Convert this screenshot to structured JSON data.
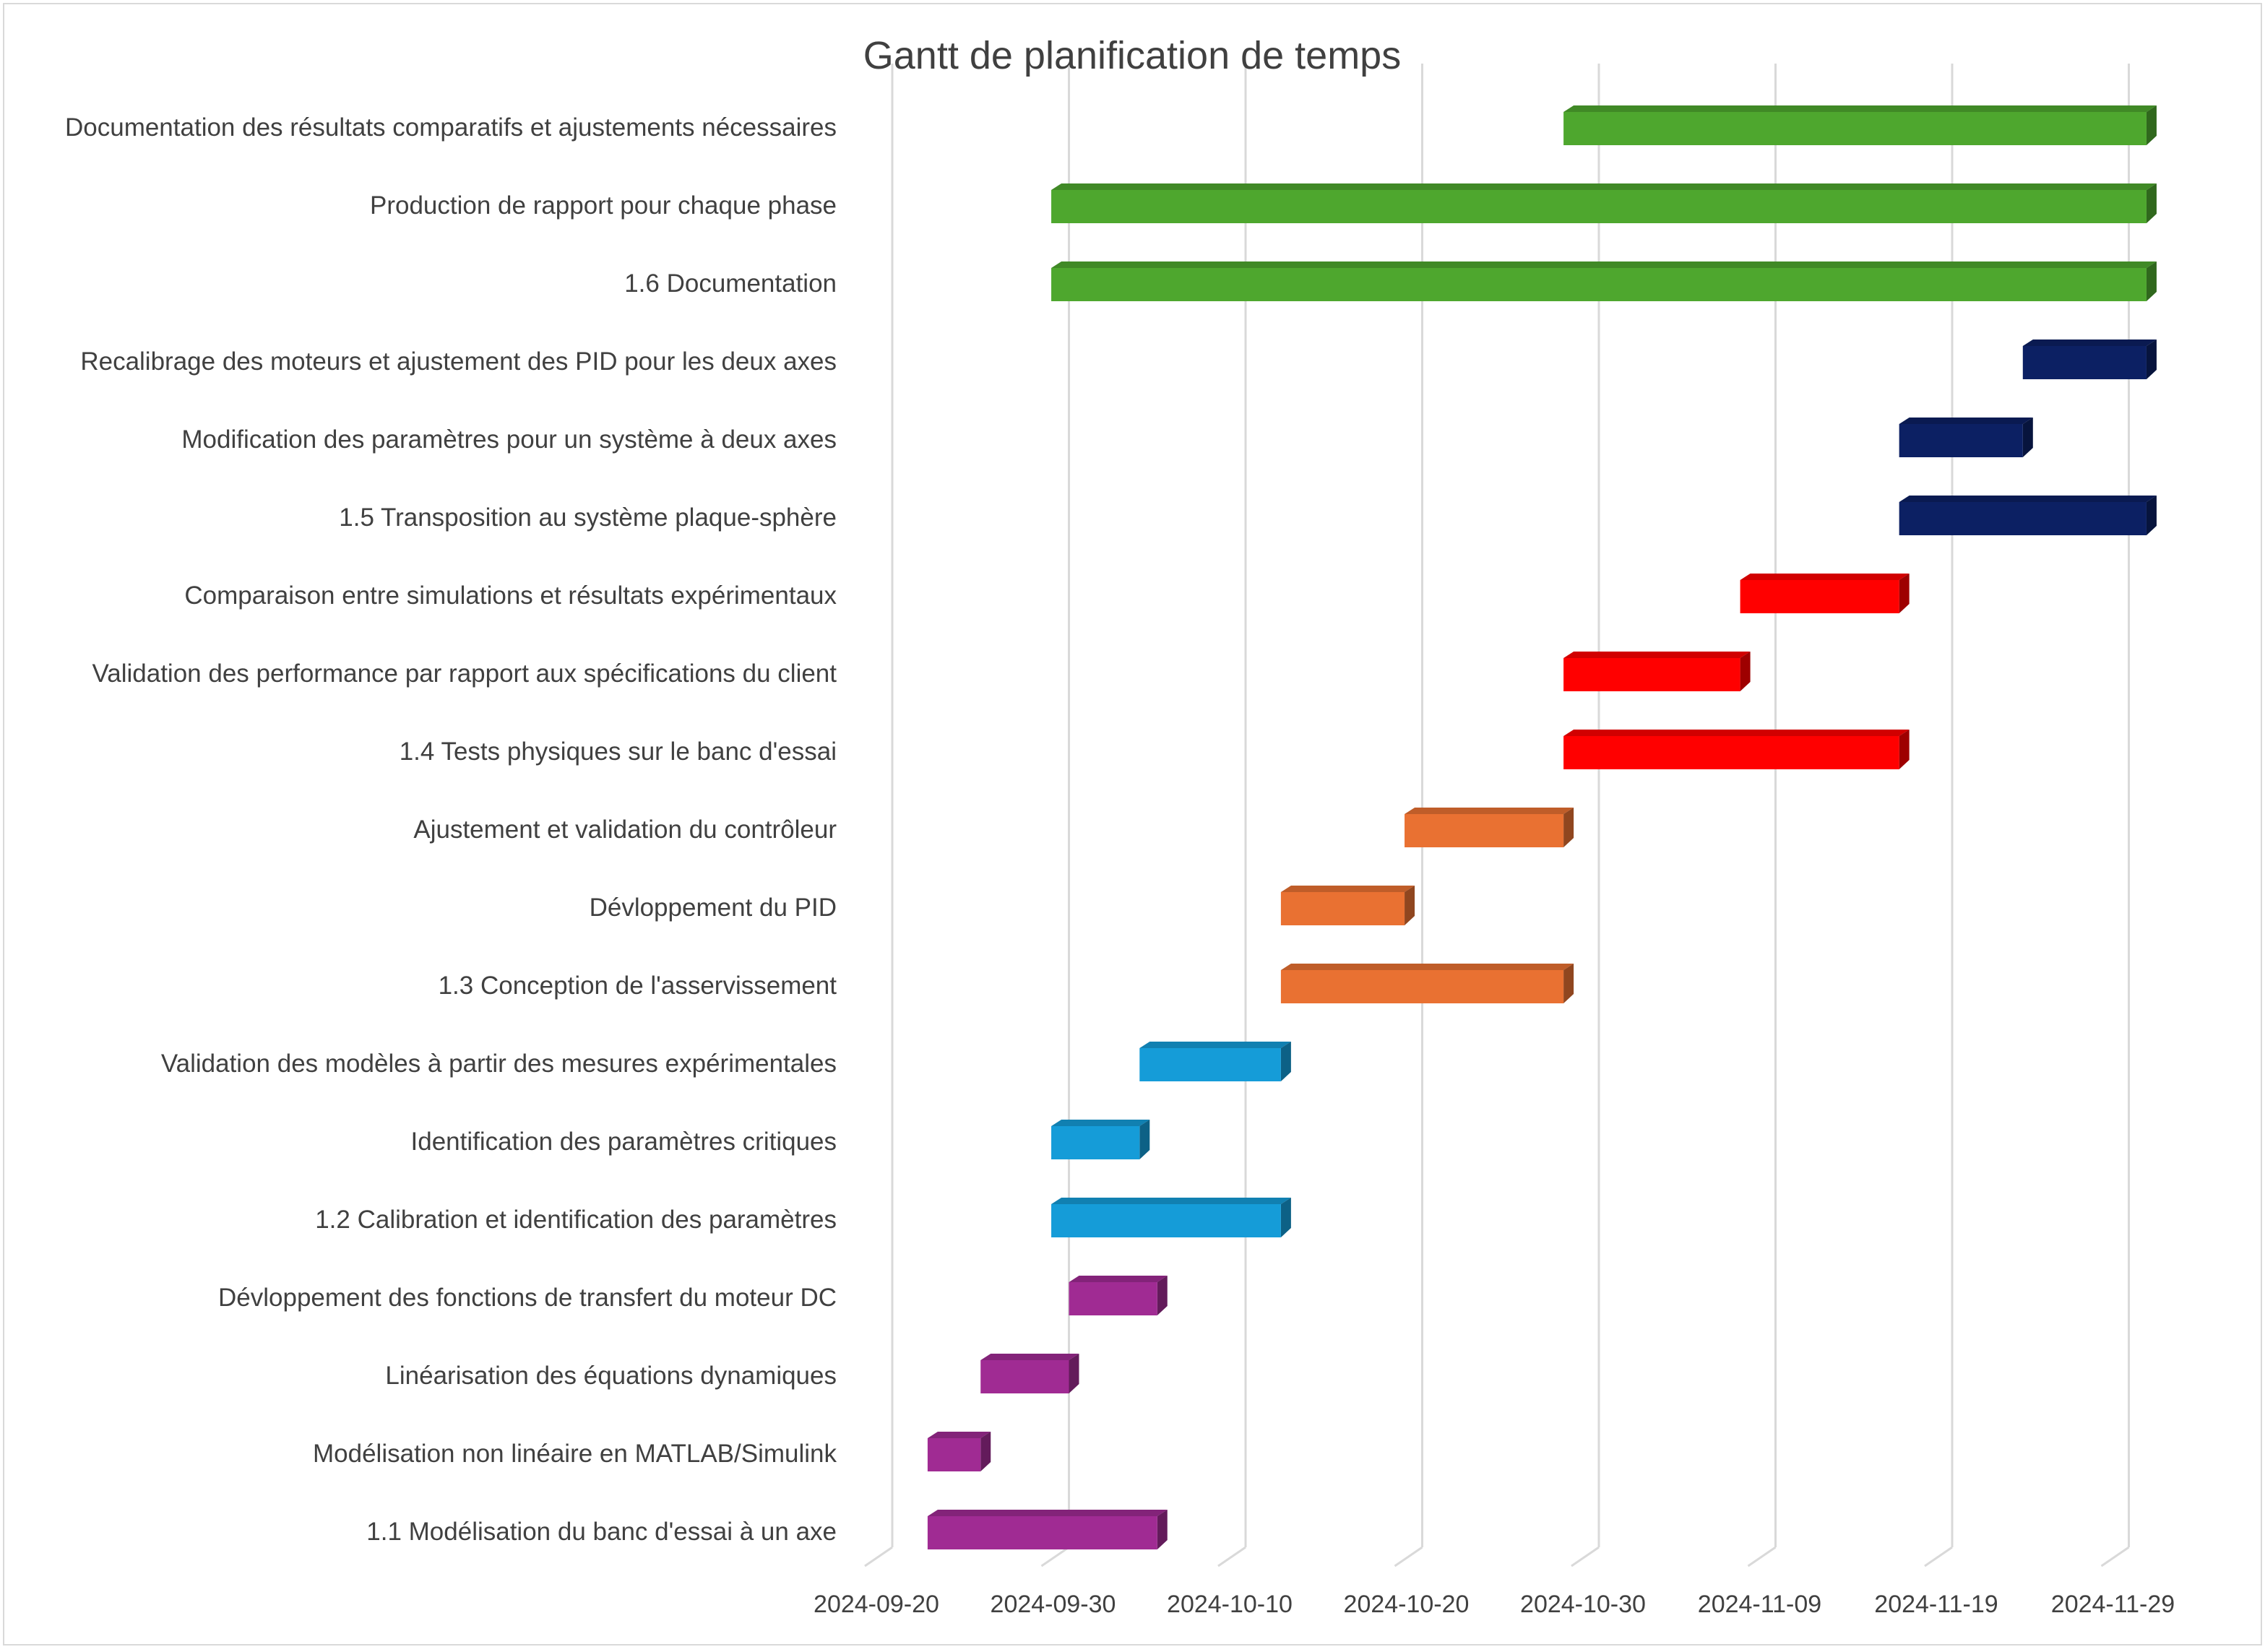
{
  "chart_data": {
    "type": "bar",
    "subtype": "gantt-3d",
    "title": "Gantt de planification de temps",
    "xlabel": "",
    "ylabel": "",
    "x_axis": {
      "type": "date",
      "range": [
        "2024-09-17",
        "2024-12-02"
      ],
      "ticks": [
        "2024-09-20",
        "2024-09-30",
        "2024-10-10",
        "2024-10-20",
        "2024-10-30",
        "2024-11-09",
        "2024-11-19",
        "2024-11-29"
      ]
    },
    "grid": true,
    "legend": "none",
    "colors": {
      "green": "#4ea72e",
      "navy": "#0c2063",
      "red": "#ff0000",
      "orange": "#e97132",
      "blue": "#159cd8",
      "purple": "#a02b93",
      "grid": "#d9d9d9",
      "text": "#404040"
    },
    "tasks": [
      {
        "label": "Documentation des résultats comparatifs et ajustements nécessaires",
        "start": "2024-10-28",
        "end": "2024-11-30",
        "color": "green"
      },
      {
        "label": "Production de rapport pour chaque phase",
        "start": "2024-09-29",
        "end": "2024-11-30",
        "color": "green"
      },
      {
        "label": "1.6 Documentation",
        "start": "2024-09-29",
        "end": "2024-11-30",
        "color": "green"
      },
      {
        "label": "Recalibrage des moteurs et ajustement des PID pour les deux axes",
        "start": "2024-11-23",
        "end": "2024-11-30",
        "color": "navy"
      },
      {
        "label": "Modification des paramètres pour un système à deux axes",
        "start": "2024-11-16",
        "end": "2024-11-23",
        "color": "navy"
      },
      {
        "label": "1.5 Transposition au système plaque-sphère",
        "start": "2024-11-16",
        "end": "2024-11-30",
        "color": "navy"
      },
      {
        "label": "Comparaison entre simulations et résultats expérimentaux",
        "start": "2024-11-07",
        "end": "2024-11-16",
        "color": "red"
      },
      {
        "label": "Validation des performance par rapport aux spécifications du client",
        "start": "2024-10-28",
        "end": "2024-11-07",
        "color": "red"
      },
      {
        "label": "1.4 Tests physiques sur le banc d'essai",
        "start": "2024-10-28",
        "end": "2024-11-16",
        "color": "red"
      },
      {
        "label": "Ajustement et validation du contrôleur",
        "start": "2024-10-19",
        "end": "2024-10-28",
        "color": "orange"
      },
      {
        "label": "Dévloppement du PID",
        "start": "2024-10-12",
        "end": "2024-10-19",
        "color": "orange"
      },
      {
        "label": "1.3 Conception de l'asservissement",
        "start": "2024-10-12",
        "end": "2024-10-28",
        "color": "orange"
      },
      {
        "label": "Validation des modèles à partir des mesures expérimentales",
        "start": "2024-10-04",
        "end": "2024-10-12",
        "color": "blue"
      },
      {
        "label": "Identification des paramètres critiques",
        "start": "2024-09-29",
        "end": "2024-10-04",
        "color": "blue"
      },
      {
        "label": "1.2 Calibration et identification des paramètres",
        "start": "2024-09-29",
        "end": "2024-10-12",
        "color": "blue"
      },
      {
        "label": "Dévloppement des fonctions de transfert du moteur DC",
        "start": "2024-09-30",
        "end": "2024-10-05",
        "color": "purple"
      },
      {
        "label": "Linéarisation des équations dynamiques",
        "start": "2024-09-25",
        "end": "2024-09-30",
        "color": "purple"
      },
      {
        "label": "Modélisation non linéaire en MATLAB/Simulink",
        "start": "2024-09-22",
        "end": "2024-09-25",
        "color": "purple"
      },
      {
        "label": "1.1 Modélisation du banc d'essai à un axe",
        "start": "2024-09-22",
        "end": "2024-10-05",
        "color": "purple"
      }
    ]
  }
}
